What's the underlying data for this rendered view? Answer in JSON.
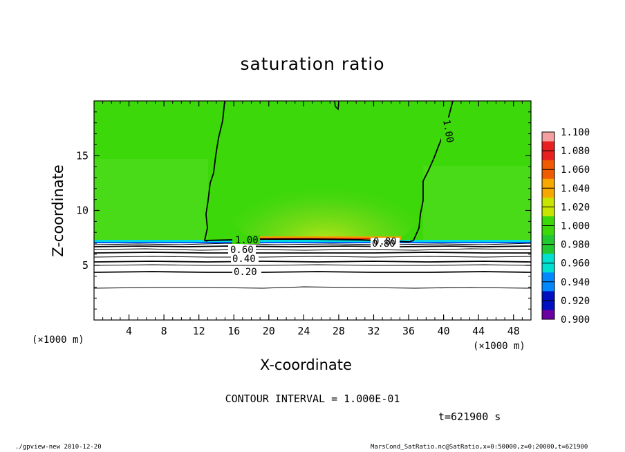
{
  "chart_data": {
    "type": "heatmap",
    "title": "saturation ratio",
    "xlabel": "X-coordinate",
    "ylabel": "Z-coordinate",
    "x_unit": "(×1000 m)",
    "y_unit": "(×1000 m)",
    "xlim": [
      0,
      50
    ],
    "ylim": [
      0,
      20
    ],
    "x_ticks": [
      4,
      8,
      12,
      16,
      20,
      24,
      28,
      32,
      36,
      40,
      44,
      48
    ],
    "y_ticks": [
      5,
      10,
      15
    ],
    "colorbar": {
      "levels": [
        "1.100",
        "1.080",
        "1.060",
        "1.040",
        "1.020",
        "1.000",
        "0.980",
        "0.960",
        "0.940",
        "0.920",
        "0.900"
      ],
      "colors": [
        "#f4a0a0",
        "#e82020",
        "#f05a00",
        "#f7a800",
        "#c8e400",
        "#3cd80a",
        "#22c830",
        "#00e0d0",
        "#0088ff",
        "#0010c0",
        "#6a00a0"
      ]
    },
    "contour_labels": [
      "1.00",
      "1.00",
      "0.80",
      "0.80",
      "0.60",
      "0.40",
      "0.20"
    ],
    "contour_interval": "CONTOUR INTERVAL = 1.000E-01"
  },
  "annotations": {
    "time": "t=621900 s",
    "footer_left": "./gpview-new  2010-12-20",
    "footer_right": "MarsCond_SatRatio.nc@SatRatio,x=0:50000,z=0:20000,t=621900"
  }
}
